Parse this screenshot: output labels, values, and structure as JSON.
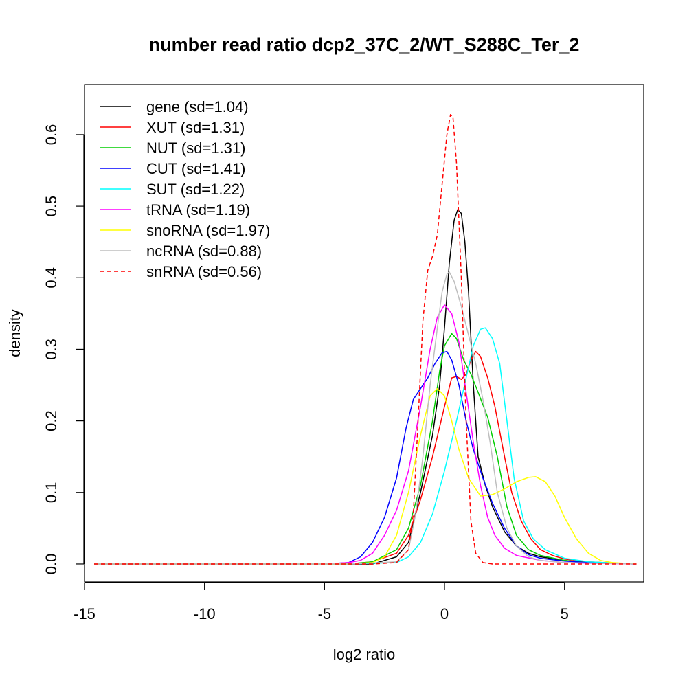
{
  "chart_data": {
    "type": "line",
    "title": "number read ratio dcp2_37C_2/WT_S288C_Ter_2",
    "xlabel": "log2 ratio",
    "ylabel": "density",
    "xlim": [
      -15,
      8.3
    ],
    "ylim": [
      -0.025,
      0.67
    ],
    "x_ticks": [
      -15,
      -10,
      -5,
      0,
      5
    ],
    "x_tick_labels": [
      "-15",
      "-10",
      "-5",
      "0",
      "5"
    ],
    "y_ticks": [
      0.0,
      0.1,
      0.2,
      0.3,
      0.4,
      0.5,
      0.6
    ],
    "y_tick_labels": [
      "0.0",
      "0.1",
      "0.2",
      "0.3",
      "0.4",
      "0.5",
      "0.6"
    ],
    "legend_position": "top-left",
    "grid": false,
    "series": [
      {
        "name": "gene (sd=1.04)",
        "color": "#000000",
        "dash": "solid",
        "points": [
          [
            -14.6,
            0
          ],
          [
            -5,
            0
          ],
          [
            -3,
            0
          ],
          [
            -2,
            0.01
          ],
          [
            -1.5,
            0.03
          ],
          [
            -1,
            0.1
          ],
          [
            -0.5,
            0.18
          ],
          [
            -0.2,
            0.25
          ],
          [
            0,
            0.33
          ],
          [
            0.2,
            0.42
          ],
          [
            0.4,
            0.48
          ],
          [
            0.55,
            0.495
          ],
          [
            0.7,
            0.49
          ],
          [
            0.85,
            0.45
          ],
          [
            1.0,
            0.38
          ],
          [
            1.2,
            0.25
          ],
          [
            1.4,
            0.15
          ],
          [
            1.7,
            0.11
          ],
          [
            2.0,
            0.08
          ],
          [
            2.5,
            0.045
          ],
          [
            3.0,
            0.025
          ],
          [
            3.5,
            0.015
          ],
          [
            4.0,
            0.01
          ],
          [
            5.0,
            0.005
          ],
          [
            6.0,
            0.002
          ],
          [
            8.0,
            0
          ]
        ]
      },
      {
        "name": "XUT (sd=1.31)",
        "color": "#ff0000",
        "dash": "solid",
        "points": [
          [
            -14.6,
            0
          ],
          [
            -4,
            0
          ],
          [
            -3,
            0.003
          ],
          [
            -2,
            0.015
          ],
          [
            -1.5,
            0.04
          ],
          [
            -1,
            0.09
          ],
          [
            -0.5,
            0.15
          ],
          [
            0,
            0.22
          ],
          [
            0.3,
            0.26
          ],
          [
            0.5,
            0.262
          ],
          [
            0.7,
            0.258
          ],
          [
            0.9,
            0.265
          ],
          [
            1.1,
            0.285
          ],
          [
            1.3,
            0.297
          ],
          [
            1.5,
            0.29
          ],
          [
            1.8,
            0.26
          ],
          [
            2.1,
            0.22
          ],
          [
            2.5,
            0.15
          ],
          [
            2.8,
            0.1
          ],
          [
            3.2,
            0.06
          ],
          [
            3.6,
            0.035
          ],
          [
            4.0,
            0.02
          ],
          [
            4.5,
            0.012
          ],
          [
            5.0,
            0.007
          ],
          [
            6.0,
            0.003
          ],
          [
            8.0,
            0
          ]
        ]
      },
      {
        "name": "NUT (sd=1.31)",
        "color": "#00cd00",
        "dash": "solid",
        "points": [
          [
            -14.6,
            0
          ],
          [
            -4,
            0
          ],
          [
            -3,
            0.003
          ],
          [
            -2,
            0.02
          ],
          [
            -1.5,
            0.05
          ],
          [
            -1,
            0.11
          ],
          [
            -0.5,
            0.2
          ],
          [
            -0.2,
            0.27
          ],
          [
            0,
            0.305
          ],
          [
            0.3,
            0.322
          ],
          [
            0.5,
            0.315
          ],
          [
            0.8,
            0.285
          ],
          [
            1.1,
            0.265
          ],
          [
            1.4,
            0.24
          ],
          [
            1.8,
            0.205
          ],
          [
            2.2,
            0.15
          ],
          [
            2.6,
            0.08
          ],
          [
            3.0,
            0.04
          ],
          [
            3.5,
            0.02
          ],
          [
            4.0,
            0.012
          ],
          [
            5.0,
            0.005
          ],
          [
            6.0,
            0.002
          ],
          [
            8.0,
            0
          ]
        ]
      },
      {
        "name": "CUT (sd=1.41)",
        "color": "#0000ff",
        "dash": "solid",
        "points": [
          [
            -14.6,
            0
          ],
          [
            -5,
            0
          ],
          [
            -4,
            0.002
          ],
          [
            -3.5,
            0.01
          ],
          [
            -3,
            0.03
          ],
          [
            -2.5,
            0.065
          ],
          [
            -2,
            0.12
          ],
          [
            -1.6,
            0.19
          ],
          [
            -1.3,
            0.23
          ],
          [
            -1,
            0.245
          ],
          [
            -0.7,
            0.26
          ],
          [
            -0.4,
            0.28
          ],
          [
            -0.1,
            0.295
          ],
          [
            0.1,
            0.297
          ],
          [
            0.3,
            0.285
          ],
          [
            0.6,
            0.25
          ],
          [
            0.9,
            0.2
          ],
          [
            1.2,
            0.16
          ],
          [
            1.6,
            0.12
          ],
          [
            2.0,
            0.085
          ],
          [
            2.5,
            0.05
          ],
          [
            3.0,
            0.025
          ],
          [
            3.5,
            0.013
          ],
          [
            4.0,
            0.008
          ],
          [
            5.0,
            0.004
          ],
          [
            6.0,
            0.002
          ],
          [
            8.0,
            0
          ]
        ]
      },
      {
        "name": "SUT (sd=1.22)",
        "color": "#00ffff",
        "dash": "solid",
        "points": [
          [
            -14.6,
            0
          ],
          [
            -4,
            0
          ],
          [
            -2,
            0.002
          ],
          [
            -1.5,
            0.01
          ],
          [
            -1,
            0.03
          ],
          [
            -0.5,
            0.07
          ],
          [
            0,
            0.13
          ],
          [
            0.5,
            0.2
          ],
          [
            0.9,
            0.26
          ],
          [
            1.2,
            0.305
          ],
          [
            1.5,
            0.328
          ],
          [
            1.7,
            0.33
          ],
          [
            2.0,
            0.315
          ],
          [
            2.3,
            0.28
          ],
          [
            2.6,
            0.2
          ],
          [
            2.9,
            0.12
          ],
          [
            3.3,
            0.06
          ],
          [
            3.7,
            0.035
          ],
          [
            4.2,
            0.02
          ],
          [
            5.0,
            0.008
          ],
          [
            6.0,
            0.003
          ],
          [
            8.0,
            0
          ]
        ]
      },
      {
        "name": "tRNA (sd=1.19)",
        "color": "#ff00ff",
        "dash": "solid",
        "points": [
          [
            -14.6,
            0
          ],
          [
            -5,
            0
          ],
          [
            -4,
            0.002
          ],
          [
            -3.5,
            0.005
          ],
          [
            -3,
            0.015
          ],
          [
            -2.5,
            0.04
          ],
          [
            -2,
            0.075
          ],
          [
            -1.5,
            0.13
          ],
          [
            -1,
            0.22
          ],
          [
            -0.6,
            0.3
          ],
          [
            -0.3,
            0.345
          ],
          [
            0,
            0.362
          ],
          [
            0.3,
            0.35
          ],
          [
            0.6,
            0.31
          ],
          [
            0.9,
            0.24
          ],
          [
            1.2,
            0.17
          ],
          [
            1.5,
            0.11
          ],
          [
            1.8,
            0.065
          ],
          [
            2.1,
            0.04
          ],
          [
            2.5,
            0.022
          ],
          [
            3.0,
            0.012
          ],
          [
            4.0,
            0.005
          ],
          [
            5.0,
            0.002
          ],
          [
            6.0,
            0.001
          ],
          [
            8.0,
            0
          ]
        ]
      },
      {
        "name": "snoRNA (sd=1.97)",
        "color": "#ffff00",
        "dash": "solid",
        "points": [
          [
            -14.6,
            0
          ],
          [
            -4,
            0
          ],
          [
            -3,
            0.002
          ],
          [
            -2.5,
            0.01
          ],
          [
            -2,
            0.04
          ],
          [
            -1.5,
            0.1
          ],
          [
            -1,
            0.18
          ],
          [
            -0.6,
            0.235
          ],
          [
            -0.3,
            0.245
          ],
          [
            0,
            0.235
          ],
          [
            0.3,
            0.2
          ],
          [
            0.6,
            0.16
          ],
          [
            1.0,
            0.12
          ],
          [
            1.5,
            0.095
          ],
          [
            2.0,
            0.097
          ],
          [
            2.5,
            0.105
          ],
          [
            3.0,
            0.115
          ],
          [
            3.5,
            0.121
          ],
          [
            3.8,
            0.122
          ],
          [
            4.2,
            0.115
          ],
          [
            4.6,
            0.095
          ],
          [
            5.0,
            0.065
          ],
          [
            5.5,
            0.035
          ],
          [
            6.0,
            0.015
          ],
          [
            6.5,
            0.005
          ],
          [
            7.0,
            0.002
          ],
          [
            8.0,
            0
          ]
        ]
      },
      {
        "name": "ncRNA (sd=0.88)",
        "color": "#bebebe",
        "dash": "solid",
        "points": [
          [
            -14.6,
            0
          ],
          [
            -4,
            0
          ],
          [
            -2,
            0.003
          ],
          [
            -1.5,
            0.02
          ],
          [
            -1.2,
            0.07
          ],
          [
            -0.9,
            0.15
          ],
          [
            -0.6,
            0.25
          ],
          [
            -0.3,
            0.33
          ],
          [
            -0.1,
            0.38
          ],
          [
            0.1,
            0.405
          ],
          [
            0.2,
            0.408
          ],
          [
            0.4,
            0.395
          ],
          [
            0.7,
            0.36
          ],
          [
            1.0,
            0.32
          ],
          [
            1.3,
            0.28
          ],
          [
            1.6,
            0.23
          ],
          [
            1.9,
            0.17
          ],
          [
            2.2,
            0.1
          ],
          [
            2.6,
            0.05
          ],
          [
            3.0,
            0.025
          ],
          [
            3.5,
            0.01
          ],
          [
            4.0,
            0.005
          ],
          [
            5.0,
            0.002
          ],
          [
            8.0,
            0
          ]
        ]
      },
      {
        "name": "snRNA (sd=0.56)",
        "color": "#ff0000",
        "dash": "dashed",
        "points": [
          [
            -14.6,
            0
          ],
          [
            -3,
            0
          ],
          [
            -2,
            0.002
          ],
          [
            -1.5,
            0.02
          ],
          [
            -1.3,
            0.07
          ],
          [
            -1.1,
            0.2
          ],
          [
            -0.9,
            0.34
          ],
          [
            -0.7,
            0.41
          ],
          [
            -0.5,
            0.43
          ],
          [
            -0.3,
            0.46
          ],
          [
            -0.1,
            0.53
          ],
          [
            0.1,
            0.6
          ],
          [
            0.25,
            0.628
          ],
          [
            0.35,
            0.625
          ],
          [
            0.5,
            0.56
          ],
          [
            0.7,
            0.4
          ],
          [
            0.9,
            0.2
          ],
          [
            1.1,
            0.06
          ],
          [
            1.3,
            0.015
          ],
          [
            1.6,
            0.002
          ],
          [
            2.0,
            0
          ],
          [
            8.0,
            0
          ]
        ]
      }
    ]
  }
}
